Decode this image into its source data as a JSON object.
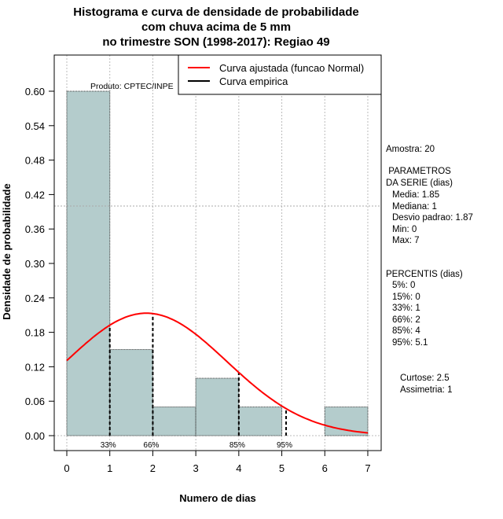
{
  "chart_data": {
    "type": "bar",
    "title_lines": [
      "Histograma e curva de densidade de probabilidade",
      "com chuva acima de 5 mm",
      "no trimestre SON (1998-2017): Regiao 49"
    ],
    "xlabel": "Numero de dias",
    "ylabel": "Densidade de probabilidade",
    "xlim": [
      0,
      7
    ],
    "ylim": [
      0,
      0.6
    ],
    "x_ticks": [
      0,
      1,
      2,
      3,
      4,
      5,
      6,
      7
    ],
    "y_ticks": [
      "0.00",
      "0.06",
      "0.12",
      "0.18",
      "0.24",
      "0.30",
      "0.36",
      "0.42",
      "0.48",
      "0.54",
      "0.60"
    ],
    "bins": [
      [
        0,
        1
      ],
      [
        1,
        2
      ],
      [
        2,
        3
      ],
      [
        3,
        4
      ],
      [
        4,
        5
      ],
      [
        5,
        6
      ],
      [
        6,
        7
      ]
    ],
    "values": [
      0.6,
      0.15,
      0.05,
      0.1,
      0.05,
      0.0,
      0.05
    ],
    "reference_line_y": 0.4,
    "normal_curve": {
      "mean": 1.85,
      "sd": 1.87
    },
    "percentile_lines": [
      {
        "label": "33%",
        "x": 1
      },
      {
        "label": "66%",
        "x": 2
      },
      {
        "label": "85%",
        "x": 4
      },
      {
        "label": "95%",
        "x": 5.1
      }
    ],
    "legend": [
      {
        "label": "Curva ajustada (funcao Normal)",
        "color": "#ff0000"
      },
      {
        "label": "Curva empirica",
        "color": "#000000"
      }
    ],
    "legend_position": "top-right",
    "annotation": "Produto: CPTEC/INPE",
    "bar_color": "#b4cccc"
  },
  "stats": {
    "amostra": "Amostra: 20",
    "param_header1": " PARAMETROS",
    "param_header2": "DA SERIE (dias)",
    "params": [
      "Media: 1.85",
      "Mediana: 1",
      "Desvio padrao: 1.87",
      "Min: 0",
      "Max: 7"
    ],
    "perc_header": "PERCENTIS (dias)",
    "percentis": [
      "5%: 0",
      "15%: 0",
      "33%: 1",
      "66%: 2",
      "85%: 4",
      "95%: 5.1"
    ],
    "curtose": "Curtose: 2.5",
    "assimetria": "Assimetria: 1"
  }
}
